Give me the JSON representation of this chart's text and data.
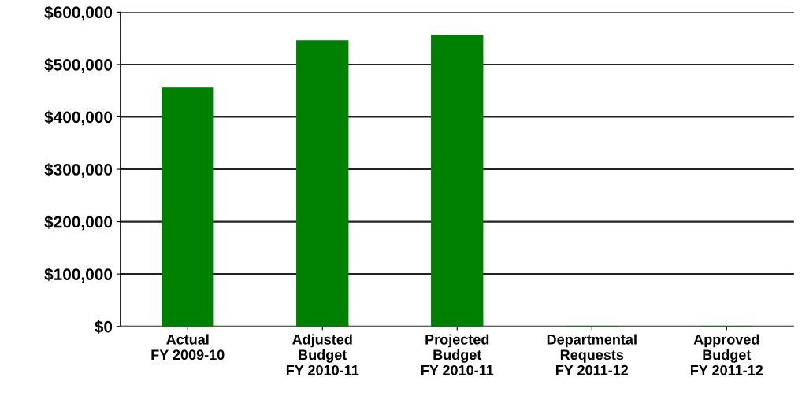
{
  "chart_data": {
    "type": "bar",
    "categories": [
      "Actual\nFY 2009-10",
      "Adjusted\nBudget\nFY 2010-11",
      "Projected\nBudget\nFY 2010-11",
      "Departmental\nRequests\nFY 2011-12",
      "Approved\nBudget\nFY 2011-12"
    ],
    "values": [
      455000,
      545000,
      555000,
      0,
      0
    ],
    "color": "#008000",
    "ylim": [
      0,
      600000
    ],
    "yticks": [
      {
        "value": 0,
        "label": "$0"
      },
      {
        "value": 100000,
        "label": "$100,000"
      },
      {
        "value": 200000,
        "label": "$200,000"
      },
      {
        "value": 300000,
        "label": "$300,000"
      },
      {
        "value": 400000,
        "label": "$400,000"
      },
      {
        "value": 500000,
        "label": "$500,000"
      },
      {
        "value": 600000,
        "label": "$600,000"
      }
    ],
    "grid": "y"
  }
}
